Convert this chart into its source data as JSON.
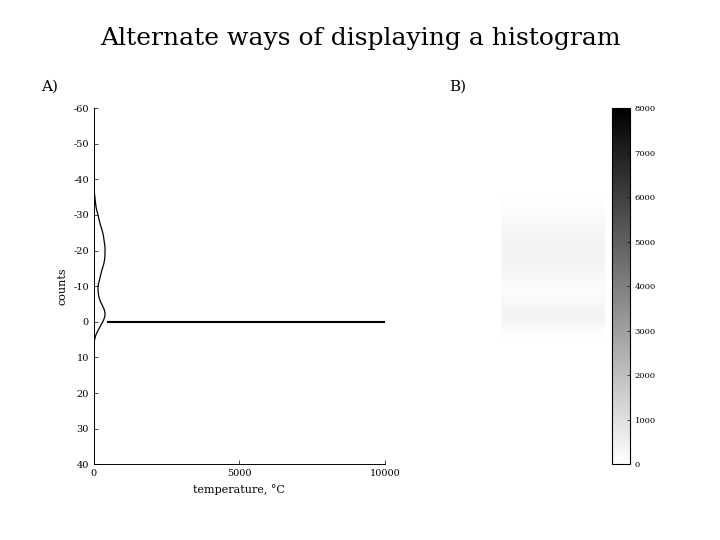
{
  "title": "Alternate ways of displaying a histogram",
  "title_fontsize": 18,
  "panel_A_label": "A)",
  "panel_B_label": "B)",
  "xlabel": "temperature, °C",
  "x_axis_label": "temperature, °C",
  "ylabel": "counts",
  "temp_min": -60,
  "temp_max": 40,
  "count_max": 10000,
  "colorbar_max": 8000,
  "colorbar_ticks": [
    0,
    1000,
    2000,
    3000,
    4000,
    5000,
    6000,
    7000,
    8000
  ],
  "background_color": "#ffffff",
  "line_color": "#000000",
  "font_family": "DejaVu Serif"
}
